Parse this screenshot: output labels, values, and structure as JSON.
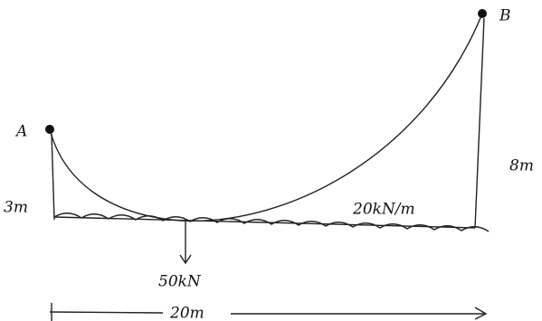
{
  "points": {
    "a": "A",
    "b": "B"
  },
  "dimensions": {
    "left_height": "3m",
    "right_height": "8m",
    "span": "20m"
  },
  "loads": {
    "distributed": "20kN/m",
    "point": "50kN"
  }
}
